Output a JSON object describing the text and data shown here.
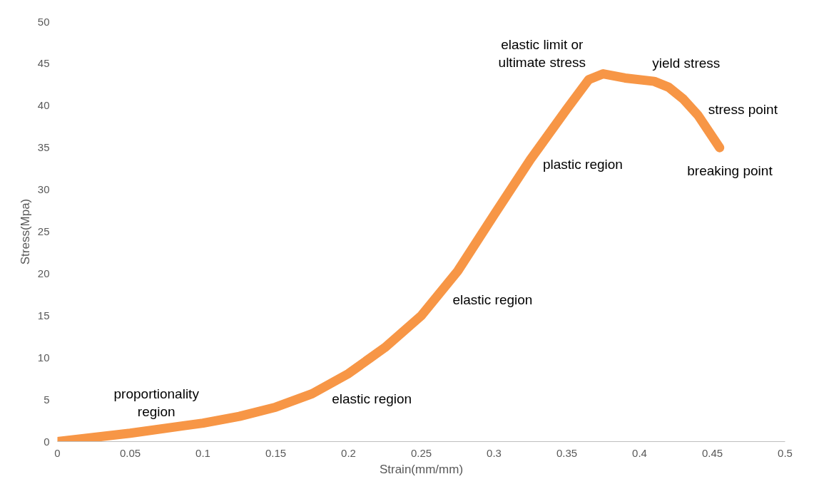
{
  "chart_data": {
    "type": "line",
    "xlabel": "Strain(mm/mm)",
    "ylabel": "Stress(Mpa)",
    "x": [
      0,
      0.05,
      0.1,
      0.125,
      0.15,
      0.175,
      0.2,
      0.225,
      0.25,
      0.275,
      0.3,
      0.325,
      0.35,
      0.365,
      0.375,
      0.39,
      0.41,
      0.42,
      0.43,
      0.44,
      0.455
    ],
    "series": [
      {
        "color": "#f79646",
        "values": [
          0,
          1.0,
          2.2,
          3.0,
          4.1,
          5.7,
          8.1,
          11.2,
          15.0,
          20.3,
          27,
          33.6,
          39.6,
          43.1,
          43.8,
          43.3,
          42.9,
          42.2,
          40.8,
          38.9,
          35.0
        ]
      }
    ],
    "xlim": [
      0,
      0.5
    ],
    "ylim": [
      0,
      50
    ],
    "xticks": [
      0,
      0.05,
      0.1,
      0.15,
      0.2,
      0.25,
      0.3,
      0.35,
      0.4,
      0.45,
      0.5
    ],
    "yticks": [
      0,
      5,
      10,
      15,
      20,
      25,
      30,
      35,
      40,
      45,
      50
    ],
    "grid": false,
    "marker": "none",
    "line_style": "solid",
    "annotations": [
      "proportionality\nregion",
      "elastic region",
      "elastic region",
      "plastic region",
      "elastic limit or\nultimate stress",
      "yield stress",
      "stress point",
      "breaking point"
    ]
  }
}
